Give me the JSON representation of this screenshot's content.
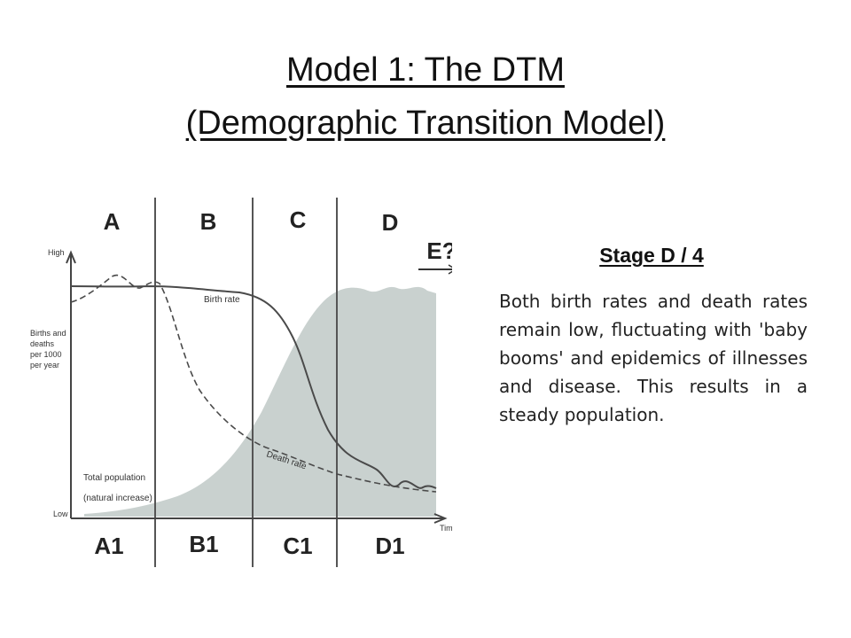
{
  "title": {
    "line1": "Model 1: The DTM",
    "line2": "(Demographic Transition Model)"
  },
  "figure": {
    "stage_labels_top": [
      "A",
      "B",
      "C",
      "D"
    ],
    "stage_labels_bottom": [
      "A1",
      "B1",
      "C1",
      "D1"
    ],
    "next_stage": "E?",
    "y_axis_high": "High",
    "y_axis_low": "Low",
    "y_axis_title": [
      "Births and",
      "deaths",
      "per 1000",
      "per year"
    ],
    "x_axis_title": "Time",
    "birth_rate_label": "Birth rate",
    "death_rate_label": "Death rate",
    "total_population_label": "Total population",
    "natural_increase_label": "(natural increase)",
    "colors": {
      "population_fill": "#c9d1cf",
      "lines": "#4a4a4a"
    }
  },
  "stage_info": {
    "heading": "Stage D / 4",
    "body": "Both birth rates and death rates remain low, fluctuating with 'baby booms' and epidemics of illnesses and disease. This results in a steady population."
  }
}
